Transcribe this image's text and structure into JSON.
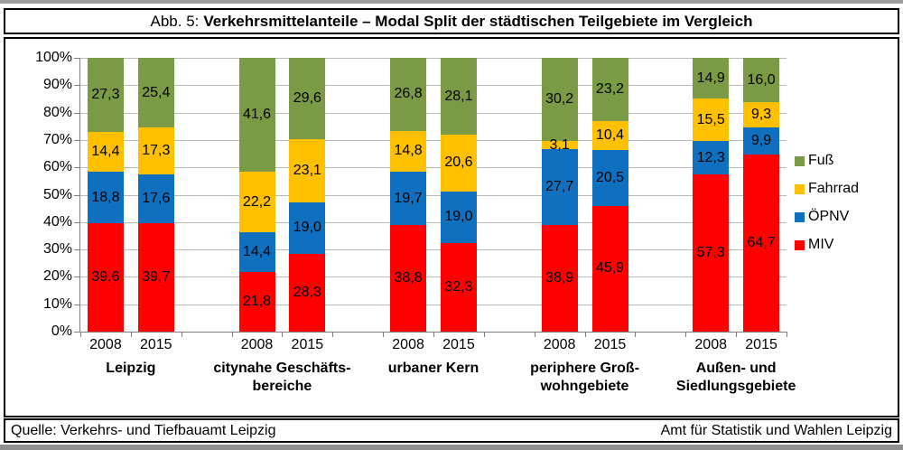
{
  "page": {
    "title_prefix": "Abb. 5:",
    "title_main": "Verkehrsmittelanteile – Modal Split der städtischen Teilgebiete im Vergleich"
  },
  "footer": {
    "left": "Quelle: Verkehrs- und Tiefbauamt Leipzig",
    "right": "Amt für Statistik und Wahlen Leipzig"
  },
  "chart_data": {
    "type": "bar",
    "subtype": "stacked-100-percent",
    "unit": "%",
    "y_axis": {
      "min": 0,
      "max": 100,
      "step": 10,
      "grid": true,
      "tick_labels": [
        "0%",
        "10%",
        "20%",
        "30%",
        "40%",
        "50%",
        "60%",
        "70%",
        "80%",
        "90%",
        "100%"
      ]
    },
    "legend": {
      "position": "right",
      "items": [
        {
          "label": "Fuß",
          "color": "#7B9A45"
        },
        {
          "label": "Fahrrad",
          "color": "#FFC000"
        },
        {
          "label": "ÖPNV",
          "color": "#1070C0"
        },
        {
          "label": "MIV",
          "color": "#FF0000"
        }
      ]
    },
    "stack_order_bottom_to_top": [
      "MIV",
      "ÖPNV",
      "Fahrrad",
      "Fuß"
    ],
    "series_colors": {
      "MIV": "#FF0000",
      "ÖPNV": "#1070C0",
      "Fahrrad": "#FFC000",
      "Fuß": "#7B9A45"
    },
    "groups": [
      {
        "label_lines": [
          "Leipzig"
        ],
        "bars": [
          {
            "year": "2008",
            "values": {
              "MIV": "39,6",
              "ÖPNV": "18,8",
              "Fahrrad": "14,4",
              "Fuß": "27,3"
            }
          },
          {
            "year": "2015",
            "values": {
              "MIV": "39,7",
              "ÖPNV": "17,6",
              "Fahrrad": "17,3",
              "Fuß": "25,4"
            }
          }
        ]
      },
      {
        "label_lines": [
          "citynahe Geschäfts-",
          "bereiche"
        ],
        "bars": [
          {
            "year": "2008",
            "values": {
              "MIV": "21,8",
              "ÖPNV": "14,4",
              "Fahrrad": "22,2",
              "Fuß": "41,6"
            }
          },
          {
            "year": "2015",
            "values": {
              "MIV": "28,3",
              "ÖPNV": "19,0",
              "Fahrrad": "23,1",
              "Fuß": "29,6"
            }
          }
        ]
      },
      {
        "label_lines": [
          "urbaner Kern"
        ],
        "bars": [
          {
            "year": "2008",
            "values": {
              "MIV": "38,8",
              "ÖPNV": "19,7",
              "Fahrrad": "14,8",
              "Fuß": "26,8"
            }
          },
          {
            "year": "2015",
            "values": {
              "MIV": "32,3",
              "ÖPNV": "19,0",
              "Fahrrad": "20,6",
              "Fuß": "28,1"
            }
          }
        ]
      },
      {
        "label_lines": [
          "periphere Groß-",
          "wohngebiete"
        ],
        "bars": [
          {
            "year": "2008",
            "values": {
              "MIV": "38,9",
              "ÖPNV": "27,7",
              "Fahrrad": "3,1",
              "Fuß": "30,2"
            }
          },
          {
            "year": "2015",
            "values": {
              "MIV": "45,9",
              "ÖPNV": "20,5",
              "Fahrrad": "10,4",
              "Fuß": "23,2"
            }
          }
        ]
      },
      {
        "label_lines": [
          "Außen- und",
          "Siedlungsgebiete"
        ],
        "bars": [
          {
            "year": "2008",
            "values": {
              "MIV": "57,3",
              "ÖPNV": "12,3",
              "Fahrrad": "15,5",
              "Fuß": "14,9"
            }
          },
          {
            "year": "2015",
            "values": {
              "MIV": "64,7",
              "ÖPNV": "9,9",
              "Fahrrad": "9,3",
              "Fuß": "16,0"
            }
          }
        ]
      }
    ]
  }
}
